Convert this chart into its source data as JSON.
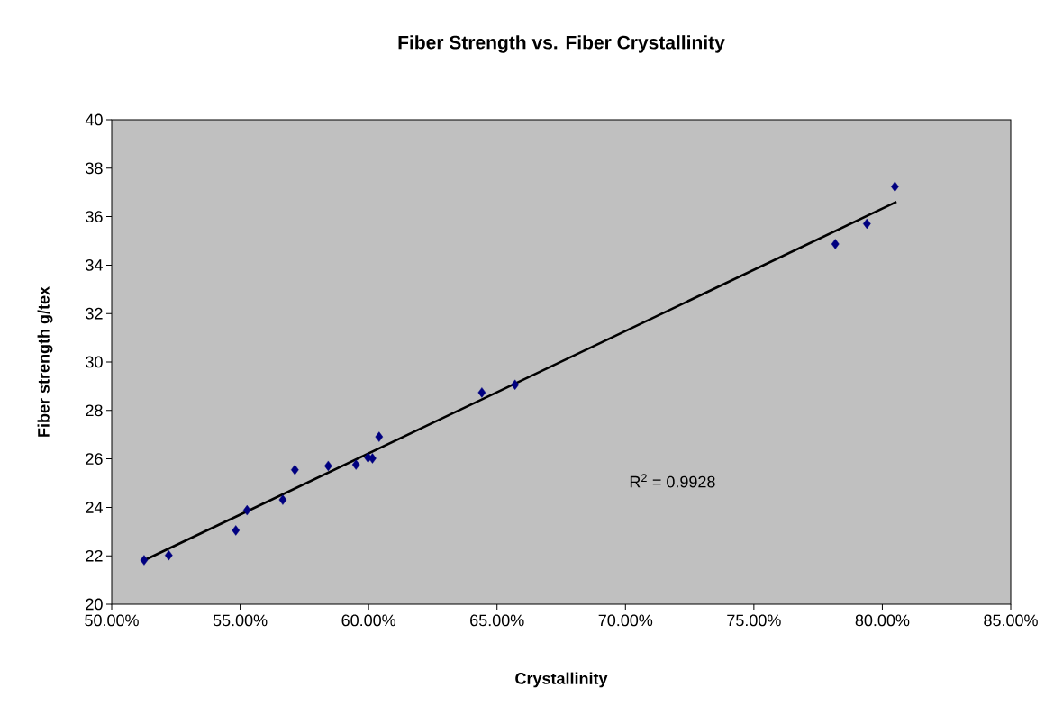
{
  "chart_data": {
    "type": "scatter",
    "title": "Fiber Strength vs. Fiber Crystallinity",
    "xlabel": "Crystallinity",
    "ylabel": "Fiber strength g/tex",
    "xlim": [
      50,
      85
    ],
    "xticks": [
      {
        "value": 50,
        "label": "50.00%"
      },
      {
        "value": 55,
        "label": "55.00%"
      },
      {
        "value": 60,
        "label": "60.00%"
      },
      {
        "value": 65,
        "label": "65.00%"
      },
      {
        "value": 70,
        "label": "70.00%"
      },
      {
        "value": 75,
        "label": "75.00%"
      },
      {
        "value": 80,
        "label": "80.00%"
      },
      {
        "value": 85,
        "label": "85.00%"
      }
    ],
    "ylim": [
      20,
      40
    ],
    "yticks": [
      20,
      22,
      24,
      26,
      28,
      30,
      32,
      34,
      36,
      38,
      40
    ],
    "grid": false,
    "annotations": [
      "R$^{2}$ = 0.9928"
    ],
    "series": [
      {
        "marker": "diamond",
        "color": "#000080",
        "x": [
          51.26,
          52.22,
          54.83,
          55.27,
          56.66,
          57.13,
          58.43,
          59.51,
          59.98,
          60.15,
          60.41,
          64.41,
          65.7,
          78.17,
          79.4,
          80.49
        ],
        "values": [
          21.82,
          22.02,
          23.05,
          23.88,
          24.31,
          25.55,
          25.71,
          25.76,
          26.05,
          26.02,
          26.91,
          28.74,
          29.06,
          34.87,
          35.71,
          37.24
        ]
      },
      {
        "type": "line",
        "marker": "none",
        "color": "#000000",
        "x": [
          51.26,
          80.55
        ],
        "values": [
          21.81,
          36.61
        ]
      }
    ]
  }
}
